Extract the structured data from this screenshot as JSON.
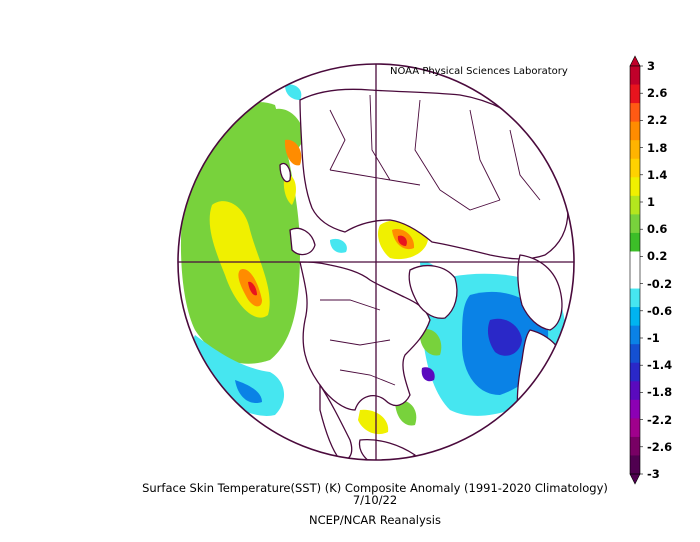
{
  "credit": "NOAA Physical Sciences Laboratory",
  "title": "Surface Skin Temperature(SST) (K) Composite Anomaly (1991-2020 Climatology)",
  "date": "7/10/22",
  "source": "NCEP/NCAR Reanalysis",
  "colorbar": {
    "ticks": [
      "3",
      "2.6",
      "2.2",
      "1.8",
      "1.4",
      "1",
      "0.6",
      "0.2",
      "-0.2",
      "-0.6",
      "-1",
      "-1.4",
      "-1.8",
      "-2.2",
      "-2.6",
      "-3"
    ],
    "colors": [
      "#c0002a",
      "#e8141e",
      "#ff5a14",
      "#ff8c00",
      "#ffb400",
      "#ffd200",
      "#f0f000",
      "#b4e61e",
      "#78d23c",
      "#3cbe28",
      "#ffffff",
      "#ffffff",
      "#46e6f0",
      "#00b4f0",
      "#0a82e6",
      "#1450d2",
      "#2a28c8",
      "#5a0abe",
      "#8c00b4",
      "#a0008c",
      "#780064",
      "#500050"
    ],
    "colors_note": "top to bottom"
  },
  "map_colors": {
    "land_outline": "#4a0a3c",
    "warm_green": "#78d23c",
    "warm_yellow": "#f0f000",
    "warm_orange": "#ff8c00",
    "warm_red": "#e8141e",
    "cold_cyan": "#46e6f0",
    "cold_blue": "#0a82e6",
    "cold_deep": "#2a28c8"
  }
}
